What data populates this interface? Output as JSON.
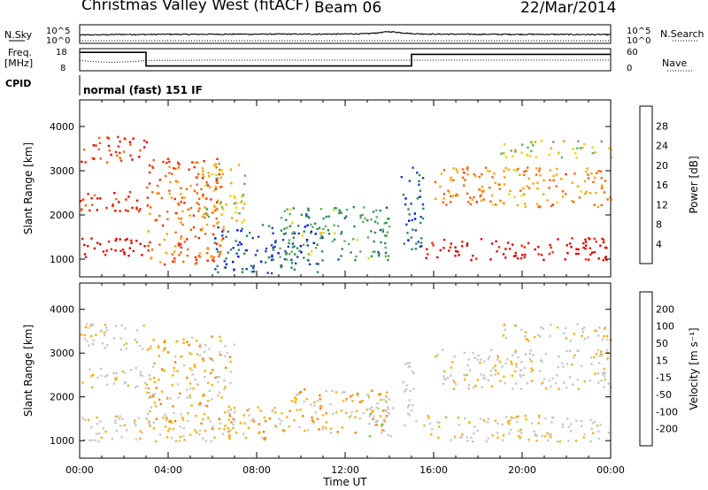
{
  "header": {
    "station": "Christmas Valley West (fitACF)",
    "beam": "Beam 06",
    "date": "22/Mar/2014"
  },
  "strip_labels": {
    "nsky": "N.Sky",
    "nsearch": "N.Search",
    "freq_line1": "Freq.",
    "freq_line2": "[MHz]",
    "nave": "Nave",
    "cpid": "CPID",
    "cpid_value": "normal (fast) 151 IF"
  },
  "colors": {
    "power_scale": [
      "#0000ff",
      "#1f3fbf",
      "#2e8b57",
      "#5fae5f",
      "#f5d000",
      "#ffa000",
      "#ff6000",
      "#ff2000",
      "#e00000"
    ],
    "velocity_scale": [
      "#ff0000",
      "#ff4500",
      "#ff8000",
      "#ffb000",
      "#c8c8c8",
      "#c8c8c8",
      "#66cc33",
      "#2e8b57",
      "#1e3fbf"
    ]
  },
  "chart_data": [
    {
      "type": "line",
      "name": "noise-strip",
      "series": [
        {
          "name": "N.Sky",
          "x": [
            0,
            1,
            2,
            3,
            4,
            5,
            6,
            7,
            8,
            9,
            10,
            11,
            12,
            13,
            13.5,
            14,
            14.5,
            15,
            16,
            17,
            18,
            19,
            20,
            21,
            22,
            23,
            24
          ],
          "values": [
            100,
            120,
            160,
            150,
            180,
            170,
            190,
            200,
            190,
            210,
            200,
            210,
            230,
            280,
            600,
            1500,
            700,
            300,
            200,
            190,
            180,
            170,
            180,
            170,
            160,
            150,
            140
          ]
        },
        {
          "name": "N.Search",
          "x": [
            0,
            24
          ],
          "values": [
            1,
            1
          ]
        }
      ],
      "ytick_labels": [
        "10^5",
        "10^0"
      ],
      "ylim": [
        1,
        100000
      ]
    },
    {
      "type": "line",
      "name": "freq-nave-strip",
      "series": [
        {
          "name": "Freq.",
          "x": [
            0,
            3,
            3,
            15,
            15,
            24
          ],
          "values": [
            17,
            17,
            10,
            10,
            16,
            16
          ]
        },
        {
          "name": "Nave",
          "x": [
            0,
            0.5,
            1,
            1.5,
            2,
            2.5,
            3,
            6,
            9,
            12,
            15,
            18,
            21,
            24
          ],
          "values": [
            15,
            10,
            8,
            6,
            8,
            10,
            15,
            16,
            16,
            16,
            16,
            16,
            16,
            16
          ]
        }
      ],
      "left_ytick_labels": [
        "18",
        "8"
      ],
      "right_ytick_labels": [
        "60",
        "0"
      ]
    },
    {
      "type": "heatmap",
      "name": "power",
      "xlabel": "",
      "ylabel": "Slant Range [km]",
      "xlim": [
        0,
        24
      ],
      "ylim": [
        600,
        4600
      ],
      "yticks": [
        1000,
        2000,
        3000,
        4000
      ],
      "xtick_labels": [
        "00:00",
        "04:00",
        "08:00",
        "12:00",
        "16:00",
        "20:00",
        "00:00"
      ],
      "colorbar": {
        "label": "Power [dB]",
        "ticks": [
          "4",
          "8",
          "12",
          "16",
          "20",
          "24",
          "28"
        ],
        "range": [
          0,
          30
        ]
      },
      "regions": [
        {
          "t": [
            0,
            3
          ],
          "r": [
            1000,
            1500
          ],
          "v": 29
        },
        {
          "t": [
            0,
            3
          ],
          "r": [
            2100,
            2600
          ],
          "v": 26
        },
        {
          "t": [
            0,
            3
          ],
          "r": [
            3200,
            3800
          ],
          "v": 25
        },
        {
          "t": [
            3,
            6.5
          ],
          "r": [
            900,
            3300
          ],
          "v": 22
        },
        {
          "t": [
            5.5,
            7.5
          ],
          "r": [
            1800,
            3200
          ],
          "v": 16
        },
        {
          "t": [
            6,
            11
          ],
          "r": [
            700,
            1800
          ],
          "v": 6
        },
        {
          "t": [
            9,
            14
          ],
          "r": [
            1000,
            2200
          ],
          "v": 10
        },
        {
          "t": [
            14.5,
            15.5
          ],
          "r": [
            1200,
            3100
          ],
          "v": 6
        },
        {
          "t": [
            15.5,
            24
          ],
          "r": [
            1000,
            1500
          ],
          "v": 28
        },
        {
          "t": [
            16,
            24
          ],
          "r": [
            2200,
            3100
          ],
          "v": 20
        },
        {
          "t": [
            19,
            24
          ],
          "r": [
            3300,
            3700
          ],
          "v": 14
        }
      ]
    },
    {
      "type": "heatmap",
      "name": "velocity",
      "xlabel": "Time UT",
      "ylabel": "Slant Range [km]",
      "xlim": [
        0,
        24
      ],
      "ylim": [
        600,
        4600
      ],
      "yticks": [
        1000,
        2000,
        3000,
        4000
      ],
      "xtick_labels": [
        "00:00",
        "04:00",
        "08:00",
        "12:00",
        "16:00",
        "20:00",
        "00:00"
      ],
      "colorbar": {
        "label": "Velocity [m s⁻¹]",
        "ticks": [
          "200",
          "100",
          "50",
          "15",
          "-15",
          "-50",
          "-100",
          "-200"
        ],
        "range": [
          -250,
          250
        ]
      },
      "regions": [
        {
          "t": [
            0,
            3
          ],
          "r": [
            1000,
            1600
          ],
          "v": 0
        },
        {
          "t": [
            0,
            3
          ],
          "r": [
            2200,
            2700
          ],
          "v": -5
        },
        {
          "t": [
            0,
            3
          ],
          "r": [
            3100,
            3700
          ],
          "v": -5
        },
        {
          "t": [
            3,
            7
          ],
          "r": [
            1000,
            3400
          ],
          "v": -40
        },
        {
          "t": [
            6.5,
            9.5
          ],
          "r": [
            1000,
            1800
          ],
          "v": -60
        },
        {
          "t": [
            9.5,
            14
          ],
          "r": [
            1200,
            2200
          ],
          "v": -55
        },
        {
          "t": [
            13,
            14.2
          ],
          "r": [
            1100,
            2000
          ],
          "v": 35
        },
        {
          "t": [
            14.5,
            15.2
          ],
          "r": [
            1300,
            2800
          ],
          "v": 35
        },
        {
          "t": [
            15.5,
            24
          ],
          "r": [
            1000,
            1600
          ],
          "v": 0
        },
        {
          "t": [
            16,
            24
          ],
          "r": [
            2200,
            3100
          ],
          "v": 0
        },
        {
          "t": [
            19,
            24
          ],
          "r": [
            3300,
            3700
          ],
          "v": 0
        }
      ]
    }
  ]
}
